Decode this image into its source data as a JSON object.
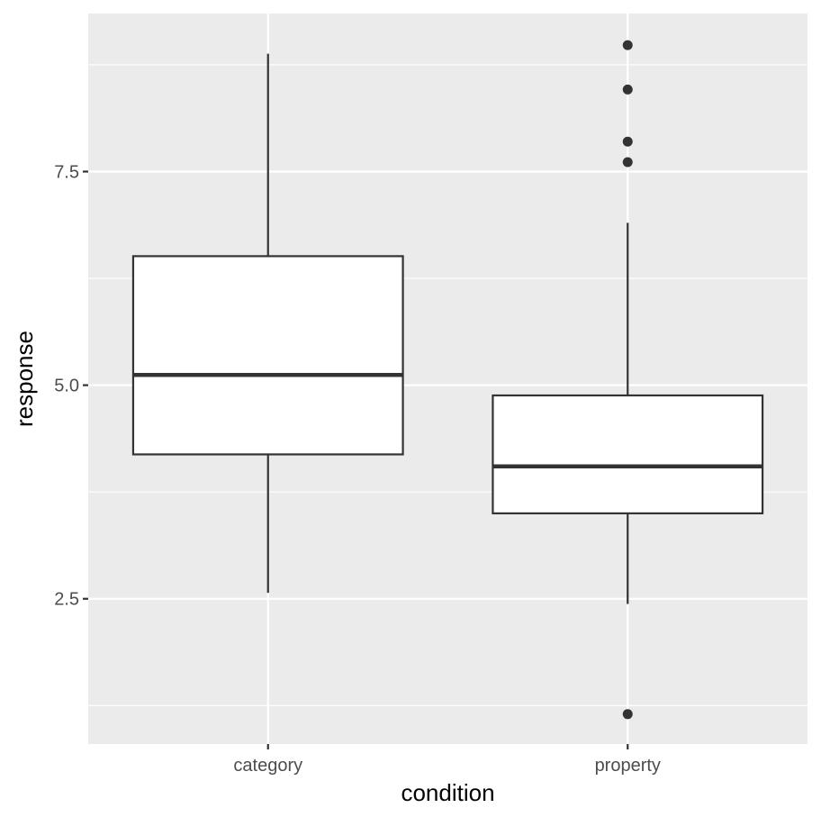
{
  "chart_data": {
    "type": "box",
    "title": "",
    "xlabel": "condition",
    "ylabel": "response",
    "categories": [
      "category",
      "property"
    ],
    "ylim": [
      0.8,
      9.35
    ],
    "y_ticks": [
      2.5,
      5.0,
      7.5
    ],
    "y_tick_labels": [
      "2.5",
      "5.0",
      "7.5"
    ],
    "grid": true,
    "legend": "none",
    "boxes": [
      {
        "category": "category",
        "whisker_low": 2.57,
        "q1": 4.19,
        "median": 5.12,
        "q3": 6.51,
        "whisker_high": 8.88,
        "outliers": []
      },
      {
        "category": "property",
        "whisker_low": 2.44,
        "q1": 3.5,
        "median": 4.05,
        "q3": 4.88,
        "whisker_high": 6.9,
        "outliers": [
          8.98,
          8.46,
          7.85,
          7.61,
          1.15
        ]
      }
    ],
    "colors": {
      "panel_background": "#ebebeb",
      "grid_line": "#ffffff",
      "box_fill": "#ffffff",
      "box_stroke": "#333333",
      "outlier": "#333333",
      "tick_text": "#4d4d4d",
      "axis_title": "#000000"
    }
  }
}
